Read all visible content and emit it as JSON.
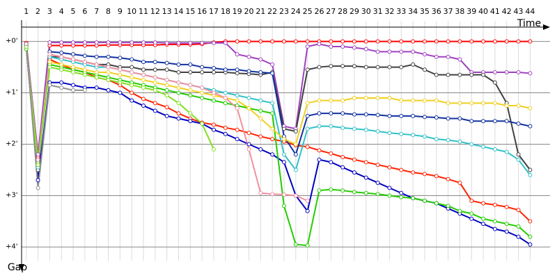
{
  "chart_data": {
    "type": "line",
    "x_label": "Time",
    "y_label": "Gap",
    "x": [
      1,
      2,
      3,
      4,
      5,
      6,
      7,
      8,
      9,
      10,
      11,
      12,
      13,
      14,
      15,
      16,
      17,
      18,
      19,
      20,
      21,
      22,
      23,
      24,
      25,
      26,
      27,
      28,
      29,
      30,
      31,
      32,
      33,
      34,
      35,
      36,
      37,
      38,
      39,
      40,
      41,
      42,
      43,
      44
    ],
    "xlim": [
      0.6,
      45.7
    ],
    "ylim": [
      -0.4,
      4.4
    ],
    "yticks": [
      {
        "value": 0,
        "label": "+0'"
      },
      {
        "value": 1,
        "label": "+1'"
      },
      {
        "value": 2,
        "label": "+2'"
      },
      {
        "value": 3,
        "label": "+3'"
      },
      {
        "value": 4,
        "label": "+4'"
      }
    ],
    "grid": true,
    "series": [
      {
        "color": "#ff0000",
        "values": [
          0.03,
          2.25,
          0.08,
          0.08,
          0.08,
          0.08,
          0.08,
          0.07,
          0.07,
          0.07,
          0.07,
          0.07,
          0.06,
          0.06,
          0.06,
          0.05,
          0.02,
          0,
          0,
          0,
          0,
          0,
          0,
          0,
          0,
          0,
          0,
          0,
          0,
          0,
          0,
          0,
          0,
          0,
          0,
          0,
          0,
          0,
          0,
          0,
          0,
          0,
          0,
          0
        ]
      },
      {
        "color": "#ff2000",
        "values": [
          0.05,
          2.35,
          0.35,
          0.45,
          0.55,
          0.6,
          0.7,
          0.75,
          0.85,
          1.0,
          1.12,
          1.2,
          1.28,
          1.4,
          1.5,
          1.58,
          1.62,
          1.68,
          1.72,
          1.78,
          1.85,
          1.9,
          1.95,
          2.02,
          2.05,
          2.12,
          2.18,
          2.25,
          2.3,
          2.35,
          2.4,
          2.45,
          2.5,
          2.55,
          2.58,
          2.62,
          2.68,
          2.75,
          3.1,
          3.15,
          3.18,
          3.22,
          3.28,
          3.5
        ]
      },
      {
        "color": "#0000c0",
        "values": [
          0.1,
          2.7,
          0.8,
          0.8,
          0.85,
          0.9,
          0.9,
          0.95,
          1.0,
          1.15,
          1.25,
          1.35,
          1.45,
          1.5,
          1.55,
          1.6,
          1.72,
          1.8,
          1.9,
          2.0,
          2.1,
          2.2,
          2.35,
          3.0,
          3.3,
          2.3,
          2.35,
          2.45,
          2.55,
          2.65,
          2.75,
          2.85,
          2.95,
          3.05,
          3.1,
          3.15,
          3.25,
          3.35,
          3.45,
          3.55,
          3.65,
          3.7,
          3.8,
          3.95
        ]
      },
      {
        "color": "#22cc00",
        "values": [
          0.15,
          2.35,
          0.45,
          0.5,
          0.55,
          0.6,
          0.65,
          0.7,
          0.75,
          0.8,
          0.85,
          0.9,
          0.95,
          1.0,
          1.05,
          1.1,
          1.15,
          1.2,
          1.25,
          1.3,
          1.35,
          1.4,
          3.2,
          3.95,
          3.97,
          2.9,
          2.88,
          2.9,
          2.93,
          2.95,
          2.97,
          3.0,
          3.03,
          3.05,
          3.1,
          3.15,
          3.2,
          3.3,
          3.35,
          3.45,
          3.5,
          3.55,
          3.6,
          3.8
        ]
      },
      {
        "color": "#a040c0",
        "values": [
          0.05,
          2.2,
          0.02,
          0.02,
          0.02,
          0.02,
          0.02,
          0.02,
          0.02,
          0.02,
          0.02,
          0.02,
          0.03,
          0.03,
          0.03,
          0.03,
          0.03,
          0.03,
          0.25,
          0.3,
          0.35,
          0.45,
          1.65,
          1.7,
          0.1,
          0.05,
          0.1,
          0.1,
          0.12,
          0.15,
          0.2,
          0.2,
          0.2,
          0.2,
          0.25,
          0.3,
          0.3,
          0.35,
          0.6,
          0.6,
          0.6,
          0.6,
          0.6,
          0.62
        ]
      },
      {
        "color": "#404040",
        "values": [
          0.1,
          2.5,
          0.3,
          0.3,
          0.35,
          0.4,
          0.45,
          0.45,
          0.5,
          0.5,
          0.55,
          0.55,
          0.55,
          0.6,
          0.6,
          0.6,
          0.6,
          0.6,
          0.62,
          0.63,
          0.65,
          0.6,
          1.7,
          1.75,
          0.55,
          0.5,
          0.48,
          0.48,
          0.48,
          0.5,
          0.5,
          0.5,
          0.5,
          0.45,
          0.55,
          0.65,
          0.65,
          0.65,
          0.65,
          0.65,
          0.8,
          1.2,
          2.2,
          2.5
        ]
      },
      {
        "color": "#1030a0",
        "values": [
          0.08,
          2.3,
          0.2,
          0.22,
          0.25,
          0.28,
          0.3,
          0.3,
          0.32,
          0.35,
          0.4,
          0.4,
          0.42,
          0.45,
          0.45,
          0.5,
          0.52,
          0.55,
          0.55,
          0.58,
          0.6,
          0.62,
          1.85,
          2.2,
          1.45,
          1.4,
          1.4,
          1.4,
          1.42,
          1.42,
          1.43,
          1.45,
          1.45,
          1.45,
          1.47,
          1.48,
          1.5,
          1.5,
          1.55,
          1.55,
          1.55,
          1.55,
          1.6,
          1.65
        ]
      },
      {
        "color": "#30c0c8",
        "values": [
          0.1,
          2.45,
          0.3,
          0.35,
          0.4,
          0.45,
          0.5,
          0.5,
          0.55,
          0.6,
          0.65,
          0.7,
          0.75,
          0.8,
          0.85,
          0.9,
          0.95,
          1.0,
          1.05,
          1.1,
          1.15,
          1.2,
          2.2,
          2.5,
          1.7,
          1.65,
          1.65,
          1.68,
          1.7,
          1.72,
          1.75,
          1.78,
          1.8,
          1.82,
          1.85,
          1.9,
          1.92,
          1.95,
          2.0,
          2.05,
          2.1,
          2.15,
          2.3,
          2.6
        ]
      },
      {
        "color": "#f0d020",
        "values": [
          0.1,
          2.4,
          0.4,
          0.45,
          0.5,
          0.55,
          0.6,
          0.6,
          0.65,
          0.7,
          0.75,
          0.8,
          0.85,
          0.9,
          0.95,
          1.0,
          1.05,
          1.1,
          1.15,
          1.3,
          1.5,
          1.7,
          1.9,
          2.0,
          1.2,
          1.15,
          1.15,
          1.15,
          1.1,
          1.1,
          1.1,
          1.1,
          1.15,
          1.15,
          1.15,
          1.15,
          1.2,
          1.2,
          1.2,
          1.2,
          1.2,
          1.25,
          1.25,
          1.3
        ]
      },
      {
        "color": "#f090a0",
        "values": [
          0.1,
          2.3,
          0.25,
          0.3,
          0.35,
          0.4,
          0.45,
          0.5,
          0.55,
          0.6,
          0.65,
          0.7,
          0.75,
          0.8,
          0.85,
          0.9,
          1.0,
          1.1,
          1.3,
          2.1,
          2.95,
          2.97,
          2.98,
          3.0,
          3.1,
          null,
          null,
          null,
          null,
          null,
          null,
          null,
          null,
          null,
          null,
          null,
          null,
          null,
          null,
          null,
          null,
          null,
          null,
          null
        ]
      },
      {
        "color": "#80e020",
        "values": [
          0.1,
          2.4,
          0.5,
          0.55,
          0.6,
          0.65,
          0.7,
          0.75,
          0.8,
          0.85,
          0.9,
          0.95,
          1.05,
          1.2,
          1.4,
          1.6,
          2.1,
          null,
          null,
          null,
          null,
          null,
          null,
          null,
          null,
          null,
          null,
          null,
          null,
          null,
          null,
          null,
          null,
          null,
          null,
          null,
          null,
          null,
          null,
          null,
          null,
          null,
          null,
          null
        ]
      },
      {
        "color": "#909090",
        "values": [
          0.05,
          2.85,
          0.85,
          0.9,
          0.95,
          0.95,
          null,
          null,
          null,
          null,
          null,
          null,
          null,
          null,
          null,
          null,
          null,
          null,
          null,
          null,
          null,
          null,
          null,
          null,
          null,
          null,
          null,
          null,
          null,
          null,
          null,
          null,
          null,
          null,
          null,
          null,
          null,
          null,
          null,
          null,
          null,
          null,
          null,
          null
        ]
      }
    ]
  }
}
